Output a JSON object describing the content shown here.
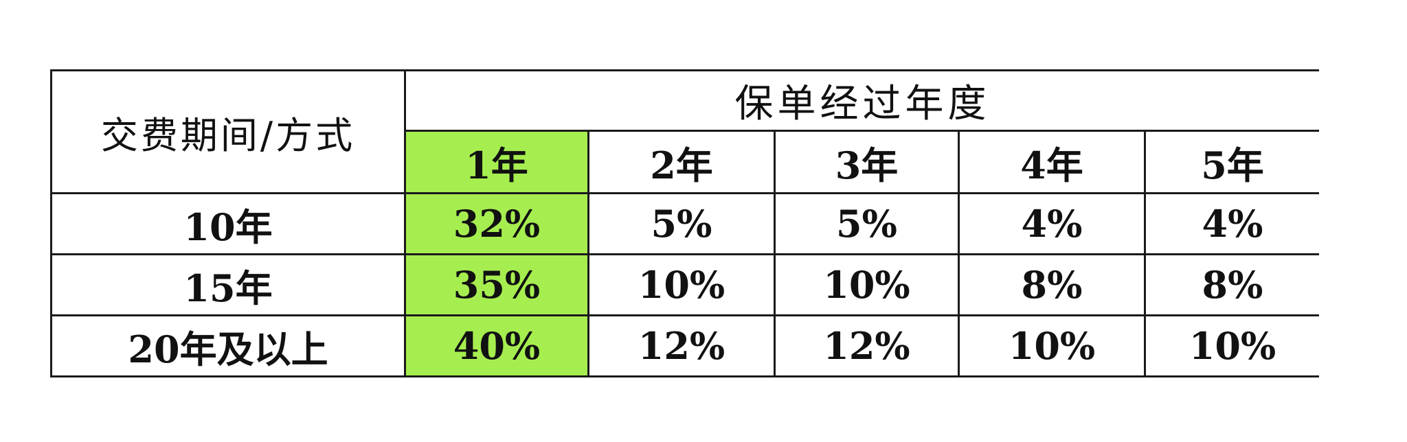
{
  "table": {
    "corner_header": "交费期间/方式",
    "group_header": "保单经过年度",
    "highlight_color": "#a6ee4f",
    "years": [
      "1年",
      "2年",
      "3年",
      "4年",
      "5年"
    ],
    "rows": [
      {
        "label": "10年",
        "values": [
          "32%",
          "5%",
          "5%",
          "4%",
          "4%"
        ]
      },
      {
        "label": "15年",
        "values": [
          "35%",
          "10%",
          "10%",
          "8%",
          "8%"
        ]
      },
      {
        "label": "20年及以上",
        "values": [
          "40%",
          "12%",
          "12%",
          "10%",
          "10%"
        ]
      }
    ]
  }
}
